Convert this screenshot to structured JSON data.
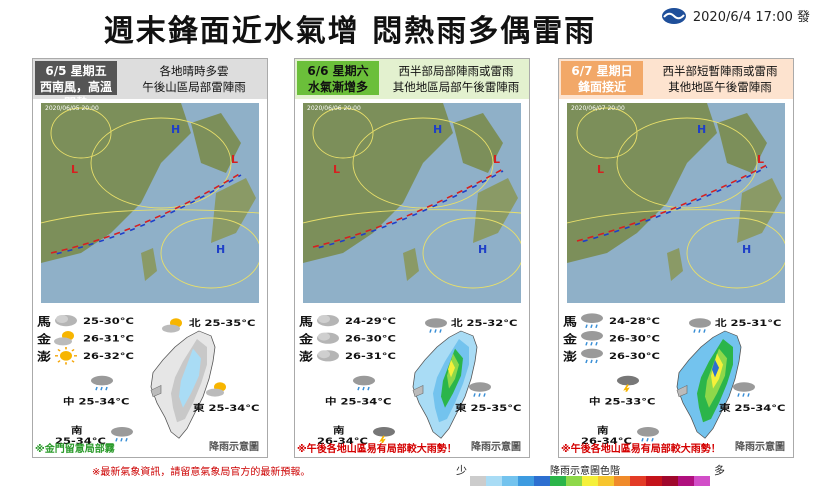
{
  "title": "週末鋒面近水氣增  悶熱雨多偶雷雨",
  "stamp": "2020/6/4 17:00 發",
  "panels": [
    {
      "date": "6/5 星期五",
      "sub": "西南風，高溫悶熱",
      "desc1": "各地晴時多雲",
      "desc2": "午後山區局部雷陣雨",
      "map_label": "2020/06/05 20:00",
      "islands": [
        {
          "name": "馬",
          "temp": "25-30°C",
          "icon": "cloud-icon"
        },
        {
          "name": "金",
          "temp": "26-31°C",
          "icon": "partly-sunny-icon"
        },
        {
          "name": "澎",
          "temp": "26-32°C",
          "icon": "sun-icon"
        }
      ],
      "north": "北 25-35°C",
      "central": "中 25-34°C",
      "east": "東 25-34°C",
      "south_label": "南",
      "south_temp": "25-34°C",
      "note": "※金門留意局部霧",
      "rain_label": "降雨示意圖"
    },
    {
      "date": "6/6 星期六",
      "sub": "水氣漸增多",
      "desc1": "西半部局部陣雨或雷雨",
      "desc2": "其他地區局部午後雷陣雨",
      "map_label": "2020/06/06 20:00",
      "islands": [
        {
          "name": "馬",
          "temp": "24-29°C",
          "icon": "cloud-icon"
        },
        {
          "name": "金",
          "temp": "26-30°C",
          "icon": "cloud-icon"
        },
        {
          "name": "澎",
          "temp": "26-31°C",
          "icon": "cloud-icon"
        }
      ],
      "north": "北 25-32°C",
      "central": "中 25-34°C",
      "east": "東 25-35°C",
      "south_label": "南",
      "south_temp": "26-34°C",
      "note": "※午後各地山區易有局部較大雨勢！",
      "rain_label": "降雨示意圖"
    },
    {
      "date": "6/7 星期日",
      "sub": "鋒面接近",
      "desc1": "西半部短暫陣雨或雷雨",
      "desc2": "其他地區午後雷陣雨",
      "map_label": "2020/06/07 20:00",
      "islands": [
        {
          "name": "馬",
          "temp": "24-28°C",
          "icon": "rain-cloud-icon"
        },
        {
          "name": "金",
          "temp": "26-30°C",
          "icon": "rain-cloud-icon"
        },
        {
          "name": "澎",
          "temp": "26-30°C",
          "icon": "rain-cloud-icon"
        }
      ],
      "north": "北 25-31°C",
      "central": "中 25-33°C",
      "east": "東 25-34°C",
      "south_label": "南",
      "south_temp": "26-34°C",
      "note": "※午後各地山區易有局部較大雨勢！",
      "rain_label": "降雨示意圖"
    }
  ],
  "footer": "※最新氣象資訊，請留意氣象局官方的最新預報。",
  "scale": {
    "title": "降雨示意圖色階",
    "less": "少",
    "more": "多"
  },
  "colors": {
    "panel1_date_bg": "#555555",
    "panel1_date_fg": "#ffffff",
    "panel2_date_bg": "#6bbf3a",
    "panel2_date_fg": "#111111",
    "panel3_date_bg": "#f2a868",
    "panel3_date_fg": "#ffffff",
    "panel1_hdr": "#dddddd",
    "panel2_hdr": "#e3f1cf",
    "panel3_hdr": "#fde3cf",
    "note_green": "#2a9a2a",
    "note_red": "#d40000",
    "scale": [
      "#cccccc",
      "#a9dcf5",
      "#73c3ee",
      "#3d9be0",
      "#2d6fd0",
      "#2bb54a",
      "#8ed84a",
      "#f5f03a",
      "#f7c52e",
      "#f08a2a",
      "#e33b26",
      "#c4131a",
      "#a0082c",
      "#b0107e",
      "#d24ec8"
    ]
  }
}
